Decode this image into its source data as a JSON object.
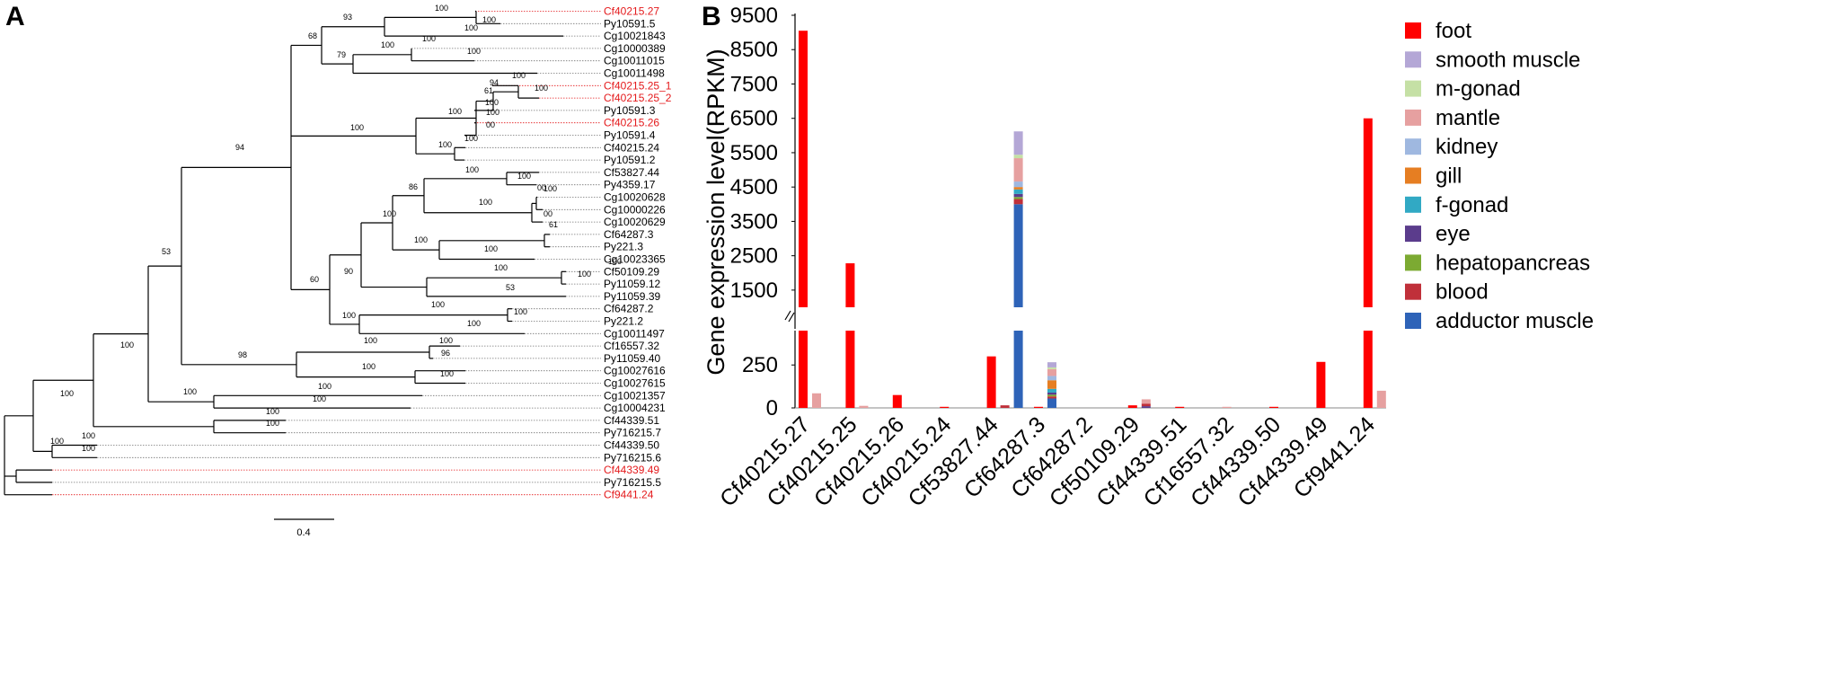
{
  "panel_a": {
    "label": "A",
    "scale_label": "0.4",
    "leaves": [
      {
        "name": "Cf40215.27",
        "color": "#e41a1c"
      },
      {
        "name": "Py10591.5",
        "color": "#000000"
      },
      {
        "name": "Cg10021843",
        "color": "#000000"
      },
      {
        "name": "Cg10000389",
        "color": "#000000"
      },
      {
        "name": "Cg10011015",
        "color": "#000000"
      },
      {
        "name": "Cg10011498",
        "color": "#000000"
      },
      {
        "name": "Cf40215.25_1",
        "color": "#e41a1c"
      },
      {
        "name": "Cf40215.25_2",
        "color": "#e41a1c"
      },
      {
        "name": "Py10591.3",
        "color": "#000000"
      },
      {
        "name": "Cf40215.26",
        "color": "#e41a1c"
      },
      {
        "name": "Py10591.4",
        "color": "#000000"
      },
      {
        "name": "Cf40215.24",
        "color": "#000000"
      },
      {
        "name": "Py10591.2",
        "color": "#000000"
      },
      {
        "name": "Cf53827.44",
        "color": "#000000"
      },
      {
        "name": "Py4359.17",
        "color": "#000000"
      },
      {
        "name": "Cg10020628",
        "color": "#000000"
      },
      {
        "name": "Cg10000226",
        "color": "#000000"
      },
      {
        "name": "Cg10020629",
        "color": "#000000"
      },
      {
        "name": "Cf64287.3",
        "color": "#000000"
      },
      {
        "name": "Py221.3",
        "color": "#000000"
      },
      {
        "name": "Cg10023365",
        "color": "#000000"
      },
      {
        "name": "Cf50109.29",
        "color": "#000000"
      },
      {
        "name": "Py11059.12",
        "color": "#000000"
      },
      {
        "name": "Py11059.39",
        "color": "#000000"
      },
      {
        "name": "Cf64287.2",
        "color": "#000000"
      },
      {
        "name": "Py221.2",
        "color": "#000000"
      },
      {
        "name": "Cg10011497",
        "color": "#000000"
      },
      {
        "name": "Cf16557.32",
        "color": "#000000"
      },
      {
        "name": "Py11059.40",
        "color": "#000000"
      },
      {
        "name": "Cg10027616",
        "color": "#000000"
      },
      {
        "name": "Cg10027615",
        "color": "#000000"
      },
      {
        "name": "Cg10021357",
        "color": "#000000"
      },
      {
        "name": "Cg10004231",
        "color": "#000000"
      },
      {
        "name": "Cf44339.51",
        "color": "#000000"
      },
      {
        "name": "Py716215.7",
        "color": "#000000"
      },
      {
        "name": "Cf44339.50",
        "color": "#000000"
      },
      {
        "name": "Py716215.6",
        "color": "#000000"
      },
      {
        "name": "Cf44339.49",
        "color": "#e41a1c"
      },
      {
        "name": "Py716215.5",
        "color": "#000000"
      },
      {
        "name": "Cf9441.24",
        "color": "#e41a1c"
      }
    ],
    "bootstrap_values": [
      "100",
      "100",
      "93",
      "100",
      "100",
      "100",
      "100",
      "79",
      "68",
      "94",
      "100",
      "61",
      "100",
      "100",
      "100",
      "100",
      "100",
      "00",
      "100",
      "100",
      "94",
      "00",
      "100",
      "100",
      "86",
      "100",
      "100",
      "00",
      "100",
      "61",
      "100",
      "100",
      "90",
      "100",
      "100",
      "100",
      "53",
      "60",
      "53",
      "100",
      "100",
      "100",
      "100",
      "100",
      "100",
      "96",
      "98",
      "100",
      "100",
      "100",
      "100",
      "100",
      "100",
      "100",
      "100",
      "100",
      "100",
      "100",
      "100"
    ]
  },
  "chart_data": {
    "panel_label": "B",
    "type": "stacked-bar",
    "ylabel": "Gene expression level(RPKM)",
    "axis_break": {
      "lower_range": [
        0,
        450
      ],
      "upper_range": [
        1000,
        9500
      ]
    },
    "yticks_lower": [
      0,
      250
    ],
    "yticks_lower_labels": [
      "0",
      "250"
    ],
    "yticks_upper": [
      1500,
      2500,
      3500,
      4500,
      5500,
      6500,
      7500,
      8500,
      9500
    ],
    "yticks_upper_labels": [
      "1500",
      "2500",
      "3500",
      "4500",
      "5500",
      "6500",
      "7500",
      "8500",
      "9500"
    ],
    "categories": [
      "Cf40215.27",
      "Cf40215.25",
      "Cf40215.26",
      "Cf40215.24",
      "Cf53827.44",
      "Cf64287.3",
      "Cf64287.2",
      "Cf50109.29",
      "Cf44339.51",
      "Cf16557.32",
      "Cf44339.50",
      "Cf44339.49",
      "Cf9441.24"
    ],
    "legend": [
      {
        "name": "foot",
        "color": "#ff0000"
      },
      {
        "name": "smooth muscle",
        "color": "#b4a7d6"
      },
      {
        "name": "m-gonad",
        "color": "#c5e0a5"
      },
      {
        "name": "mantle",
        "color": "#e6a0a0"
      },
      {
        "name": "kidney",
        "color": "#9fb8e0"
      },
      {
        "name": "gill",
        "color": "#e67e22"
      },
      {
        "name": "f-gonad",
        "color": "#31a9c4"
      },
      {
        "name": "eye",
        "color": "#5b3c8c"
      },
      {
        "name": "hepatopancreas",
        "color": "#7caa32"
      },
      {
        "name": "blood",
        "color": "#c0303a"
      },
      {
        "name": "adductor muscle",
        "color": "#2e63b8"
      }
    ],
    "bars": [
      {
        "category": "Cf40215.27",
        "slot": 0,
        "segments": [
          {
            "tissue": "foot",
            "value": 9050
          }
        ]
      },
      {
        "category": "Cf40215.27",
        "slot": 1,
        "segments": [
          {
            "tissue": "mantle",
            "value": 85
          }
        ]
      },
      {
        "category": "Cf40215.25",
        "slot": 0,
        "segments": [
          {
            "tissue": "foot",
            "value": 2280
          }
        ]
      },
      {
        "category": "Cf40215.25",
        "slot": 1,
        "segments": [
          {
            "tissue": "mantle",
            "value": 12
          }
        ]
      },
      {
        "category": "Cf40215.26",
        "slot": 0,
        "segments": [
          {
            "tissue": "foot",
            "value": 75
          }
        ]
      },
      {
        "category": "Cf40215.24",
        "slot": 0,
        "segments": [
          {
            "tissue": "foot",
            "value": 2
          }
        ]
      },
      {
        "category": "Cf53827.44",
        "slot": 0,
        "segments": [
          {
            "tissue": "foot",
            "value": 300
          }
        ]
      },
      {
        "category": "Cf53827.44",
        "slot": 1,
        "segments": [
          {
            "tissue": "blood",
            "value": 15
          }
        ]
      },
      {
        "category": "Cf53827.44",
        "slot": 2,
        "segments": [
          {
            "tissue": "adductor muscle",
            "value": 4000
          },
          {
            "tissue": "blood",
            "value": 150
          },
          {
            "tissue": "hepatopancreas",
            "value": 60
          },
          {
            "tissue": "eye",
            "value": 90
          },
          {
            "tissue": "f-gonad",
            "value": 130
          },
          {
            "tissue": "gill",
            "value": 70
          },
          {
            "tissue": "kidney",
            "value": 160
          },
          {
            "tissue": "mantle",
            "value": 680
          },
          {
            "tissue": "m-gonad",
            "value": 100
          },
          {
            "tissue": "smooth muscle",
            "value": 680
          }
        ]
      },
      {
        "category": "Cf64287.3",
        "slot": 0,
        "segments": [
          {
            "tissue": "foot",
            "value": 2
          }
        ]
      },
      {
        "category": "Cf64287.3",
        "slot": 1,
        "segments": [
          {
            "tissue": "adductor muscle",
            "value": 55
          },
          {
            "tissue": "blood",
            "value": 12
          },
          {
            "tissue": "hepatopancreas",
            "value": 10
          },
          {
            "tissue": "eye",
            "value": 12
          },
          {
            "tissue": "f-gonad",
            "value": 22
          },
          {
            "tissue": "gill",
            "value": 50
          },
          {
            "tissue": "kidney",
            "value": 25
          },
          {
            "tissue": "mantle",
            "value": 40
          },
          {
            "tissue": "m-gonad",
            "value": 10
          },
          {
            "tissue": "smooth muscle",
            "value": 30
          }
        ]
      },
      {
        "category": "Cf50109.29",
        "slot": 0,
        "segments": [
          {
            "tissue": "foot",
            "value": 15
          }
        ]
      },
      {
        "category": "Cf50109.29",
        "slot": 1,
        "segments": [
          {
            "tissue": "eye",
            "value": 10
          },
          {
            "tissue": "blood",
            "value": 15
          },
          {
            "tissue": "mantle",
            "value": 25
          }
        ]
      },
      {
        "category": "Cf44339.51",
        "slot": 0,
        "segments": [
          {
            "tissue": "foot",
            "value": 3
          }
        ]
      },
      {
        "category": "Cf16557.32",
        "slot": 0,
        "segments": [
          {
            "tissue": "mantle",
            "value": 3
          }
        ]
      },
      {
        "category": "Cf44339.50",
        "slot": 0,
        "segments": [
          {
            "tissue": "foot",
            "value": 2
          }
        ]
      },
      {
        "category": "Cf44339.49",
        "slot": 0,
        "segments": [
          {
            "tissue": "foot",
            "value": 268
          }
        ]
      },
      {
        "category": "Cf9441.24",
        "slot": 0,
        "segments": [
          {
            "tissue": "foot",
            "value": 6500
          }
        ]
      },
      {
        "category": "Cf9441.24",
        "slot": 1,
        "segments": [
          {
            "tissue": "mantle",
            "value": 100
          }
        ]
      }
    ]
  }
}
